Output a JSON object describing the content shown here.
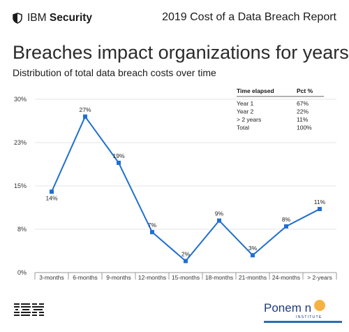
{
  "header": {
    "brand_prefix": "IBM",
    "brand_bold": "Security",
    "report_title": "2019 Cost of a Data Breach Report"
  },
  "icons": {
    "brand": "shield-icon",
    "footer_left": "ibm-logo",
    "footer_right": "ponemon-logo"
  },
  "footer": {
    "ponemon_name": "Ponem n",
    "ponemon_sub": "INSTITUTE"
  },
  "colors": {
    "line": "#1f6fd1",
    "grid": "#e6e6e6",
    "axis": "#999999"
  },
  "chart_data": {
    "type": "line",
    "title": "Breaches impact organizations for years",
    "subtitle": "Distribution of total data breach costs over time",
    "categories": [
      "3-months",
      "6-months",
      "9-months",
      "12-months",
      "15-months",
      "18-months",
      "21-months",
      "24-months",
      "> 2-years"
    ],
    "values": [
      14,
      27,
      19,
      7,
      2,
      9,
      3,
      8,
      11
    ],
    "value_labels": [
      "14%",
      "27%",
      "19%",
      "7%",
      "2%",
      "9%",
      "3%",
      "8%",
      "11%"
    ],
    "y_ticks": [
      "0%",
      "8%",
      "15%",
      "23%",
      "30%"
    ],
    "ylim": [
      0,
      30
    ],
    "grid": true,
    "table": {
      "headers": [
        "Time elapsed",
        "Pct %"
      ],
      "rows": [
        [
          "Year 1",
          "67%"
        ],
        [
          "Year 2",
          "22%"
        ],
        [
          "> 2 years",
          "11%"
        ],
        [
          "Total",
          "100%"
        ]
      ]
    }
  }
}
